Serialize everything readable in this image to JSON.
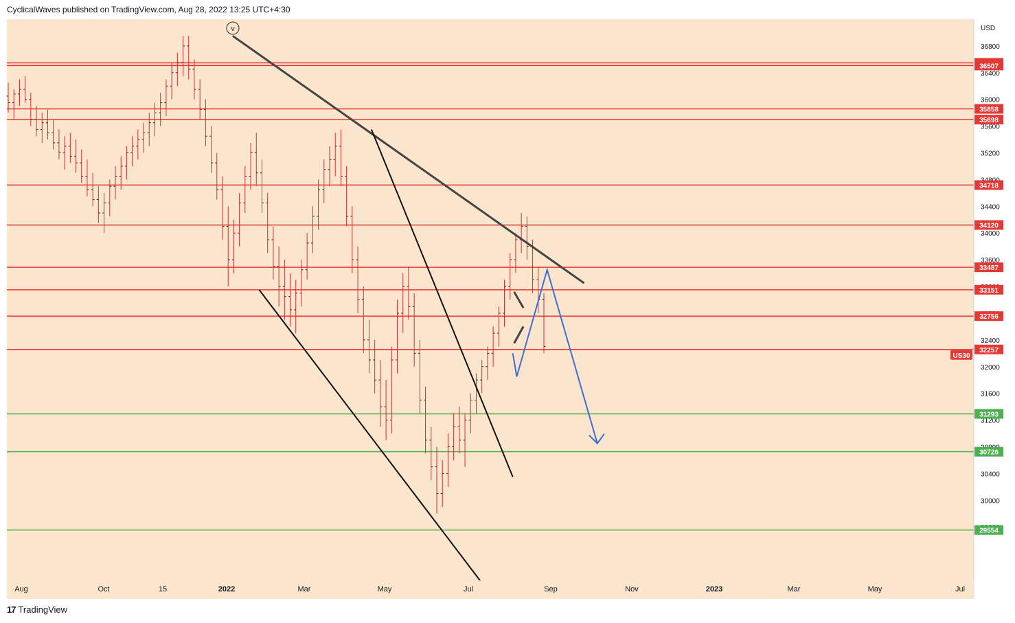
{
  "header": {
    "publisher_line": "CyclicalWaves published on TradingView.com, Aug 28, 2022 13:25 UTC+4:30"
  },
  "footer": {
    "brand": "TradingView",
    "logo_icon": "tradingview-logo-icon"
  },
  "colors": {
    "background": "#fbe5cd",
    "candle": "#d32f2f",
    "wick": "#2a2a2a",
    "resistance": "#e53935",
    "support": "#4caf50",
    "projection": "#3b6fd8",
    "trendline": "#3a3a3a"
  },
  "chart_data": {
    "type": "bar",
    "symbol_tag": "US30",
    "currency": "USD",
    "wave_label": "v",
    "y_ticks": [
      "36800",
      "36400",
      "36000",
      "35600",
      "35200",
      "34800",
      "34400",
      "34000",
      "33600",
      "33200",
      "32800",
      "32400",
      "32000",
      "31600",
      "31200",
      "30800",
      "30400",
      "30000",
      "29600"
    ],
    "x_ticks": [
      "Aug",
      "Oct",
      "15",
      "2022",
      "Mar",
      "May",
      "Jul",
      "Sep",
      "Nov",
      "2023",
      "Mar",
      "May",
      "Jul"
    ],
    "resistance_levels": [
      36547,
      36507,
      35858,
      35698,
      34718,
      34120,
      33487,
      33151,
      32756,
      32257
    ],
    "support_levels": [
      31293,
      30726,
      29554
    ],
    "price_labels": [
      "36547",
      "36507",
      "35858",
      "35698",
      "34718",
      "34120",
      "33487",
      "33151",
      "32756",
      "32257",
      "31293",
      "30726",
      "29554"
    ],
    "last_price_label": "US30",
    "trendlines": [
      {
        "name": "upper-descending",
        "from": {
          "date": "2022-01-05",
          "price": 36950
        },
        "to": {
          "date": "2022-09-28",
          "price": 33250
        }
      },
      {
        "name": "lower-channel",
        "from": {
          "date": "2022-01-25",
          "price": 33150
        },
        "to": {
          "date": "2022-07-15",
          "price": 28700
        }
      },
      {
        "name": "wedge-line",
        "from": {
          "date": "2022-04-20",
          "price": 35550
        },
        "to": {
          "date": "2022-08-05",
          "price": 30350
        }
      }
    ],
    "projection": [
      {
        "date": "2022-08-05",
        "price": 32200
      },
      {
        "date": "2022-08-08",
        "price": 31850
      },
      {
        "date": "2022-08-31",
        "price": 33450
      },
      {
        "date": "2022-10-08",
        "price": 30850
      }
    ],
    "ohlc": [
      [
        36050,
        36250,
        35800,
        35950
      ],
      [
        35950,
        36150,
        35700,
        36080
      ],
      [
        36080,
        36300,
        35900,
        36150
      ],
      [
        36150,
        36350,
        35950,
        36000
      ],
      [
        36000,
        36100,
        35600,
        35700
      ],
      [
        35700,
        35900,
        35450,
        35550
      ],
      [
        35550,
        35800,
        35350,
        35650
      ],
      [
        35650,
        35850,
        35400,
        35500
      ],
      [
        35500,
        35700,
        35250,
        35350
      ],
      [
        35350,
        35550,
        35100,
        35200
      ],
      [
        35200,
        35450,
        34950,
        35300
      ],
      [
        35300,
        35500,
        35050,
        35150
      ],
      [
        35150,
        35400,
        34900,
        35050
      ],
      [
        35050,
        35250,
        34750,
        34850
      ],
      [
        34850,
        35100,
        34550,
        34650
      ],
      [
        34650,
        34900,
        34400,
        34500
      ],
      [
        34500,
        34700,
        34150,
        34300
      ],
      [
        34300,
        34600,
        34000,
        34450
      ],
      [
        34450,
        34800,
        34250,
        34700
      ],
      [
        34700,
        35000,
        34500,
        34850
      ],
      [
        34850,
        35150,
        34650,
        35000
      ],
      [
        35000,
        35300,
        34800,
        35200
      ],
      [
        35200,
        35450,
        35000,
        35300
      ],
      [
        35300,
        35550,
        35100,
        35400
      ],
      [
        35400,
        35650,
        35200,
        35500
      ],
      [
        35500,
        35800,
        35300,
        35650
      ],
      [
        35650,
        35950,
        35450,
        35800
      ],
      [
        35800,
        36100,
        35600,
        35950
      ],
      [
        35950,
        36300,
        35750,
        36200
      ],
      [
        36200,
        36550,
        36000,
        36400
      ],
      [
        36400,
        36700,
        36200,
        36550
      ],
      [
        36550,
        36950,
        36350,
        36800
      ],
      [
        36800,
        36950,
        36300,
        36450
      ],
      [
        36450,
        36600,
        36000,
        36150
      ],
      [
        36150,
        36300,
        35700,
        35850
      ],
      [
        35850,
        36000,
        35300,
        35450
      ],
      [
        35450,
        35600,
        34900,
        35050
      ],
      [
        35050,
        35200,
        34500,
        34650
      ],
      [
        34650,
        34850,
        33900,
        34100
      ],
      [
        34100,
        34400,
        33200,
        33600
      ],
      [
        33600,
        34200,
        33400,
        34000
      ],
      [
        34000,
        34600,
        33800,
        34450
      ],
      [
        34450,
        35000,
        34300,
        34850
      ],
      [
        34850,
        35350,
        34650,
        35200
      ],
      [
        35200,
        35500,
        34700,
        34900
      ],
      [
        34900,
        35100,
        34300,
        34450
      ],
      [
        34450,
        34600,
        33700,
        33900
      ],
      [
        33900,
        34100,
        33300,
        33500
      ],
      [
        33500,
        33800,
        32900,
        33200
      ],
      [
        33200,
        33600,
        32700,
        33050
      ],
      [
        33050,
        33400,
        32600,
        32850
      ],
      [
        32850,
        33300,
        32500,
        33100
      ],
      [
        33100,
        33600,
        32900,
        33450
      ],
      [
        33450,
        34000,
        33300,
        33850
      ],
      [
        33850,
        34400,
        33700,
        34250
      ],
      [
        34250,
        34800,
        34050,
        34650
      ],
      [
        34650,
        35100,
        34450,
        34950
      ],
      [
        34950,
        35300,
        34700,
        35100
      ],
      [
        35100,
        35500,
        34850,
        35300
      ],
      [
        35300,
        35550,
        34700,
        34850
      ],
      [
        34850,
        35000,
        34100,
        34250
      ],
      [
        34250,
        34400,
        33400,
        33600
      ],
      [
        33600,
        33800,
        32800,
        33000
      ],
      [
        33000,
        33200,
        32200,
        32400
      ],
      [
        32400,
        32700,
        31900,
        32100
      ],
      [
        32100,
        32400,
        31600,
        31800
      ],
      [
        31800,
        32100,
        31100,
        31400
      ],
      [
        31400,
        31800,
        30900,
        31200
      ],
      [
        31200,
        32300,
        31000,
        32100
      ],
      [
        32100,
        33000,
        31900,
        32800
      ],
      [
        32800,
        33400,
        32500,
        33200
      ],
      [
        33200,
        33500,
        32700,
        32900
      ],
      [
        32900,
        33100,
        32000,
        32200
      ],
      [
        32200,
        32400,
        31300,
        31500
      ],
      [
        31500,
        31700,
        30700,
        30900
      ],
      [
        30900,
        31100,
        30300,
        30500
      ],
      [
        30500,
        30800,
        29800,
        30100
      ],
      [
        30100,
        30600,
        29900,
        30400
      ],
      [
        30400,
        31000,
        30200,
        30800
      ],
      [
        30800,
        31300,
        30600,
        31100
      ],
      [
        31100,
        31400,
        30700,
        30900
      ],
      [
        30900,
        31300,
        30500,
        31200
      ],
      [
        31200,
        31600,
        31000,
        31500
      ],
      [
        31500,
        31900,
        31300,
        31800
      ],
      [
        31800,
        32100,
        31600,
        32000
      ],
      [
        32000,
        32300,
        31800,
        32200
      ],
      [
        32200,
        32600,
        32000,
        32500
      ],
      [
        32500,
        32900,
        32300,
        32800
      ],
      [
        32800,
        33300,
        32600,
        33200
      ],
      [
        33200,
        33700,
        33000,
        33600
      ],
      [
        33600,
        34000,
        33400,
        33900
      ],
      [
        33900,
        34300,
        33700,
        34100
      ],
      [
        34100,
        34250,
        33600,
        33800
      ],
      [
        33800,
        33900,
        33100,
        33300
      ],
      [
        33300,
        33500,
        32800,
        33000
      ],
      [
        33000,
        33100,
        32200,
        32300
      ]
    ]
  }
}
